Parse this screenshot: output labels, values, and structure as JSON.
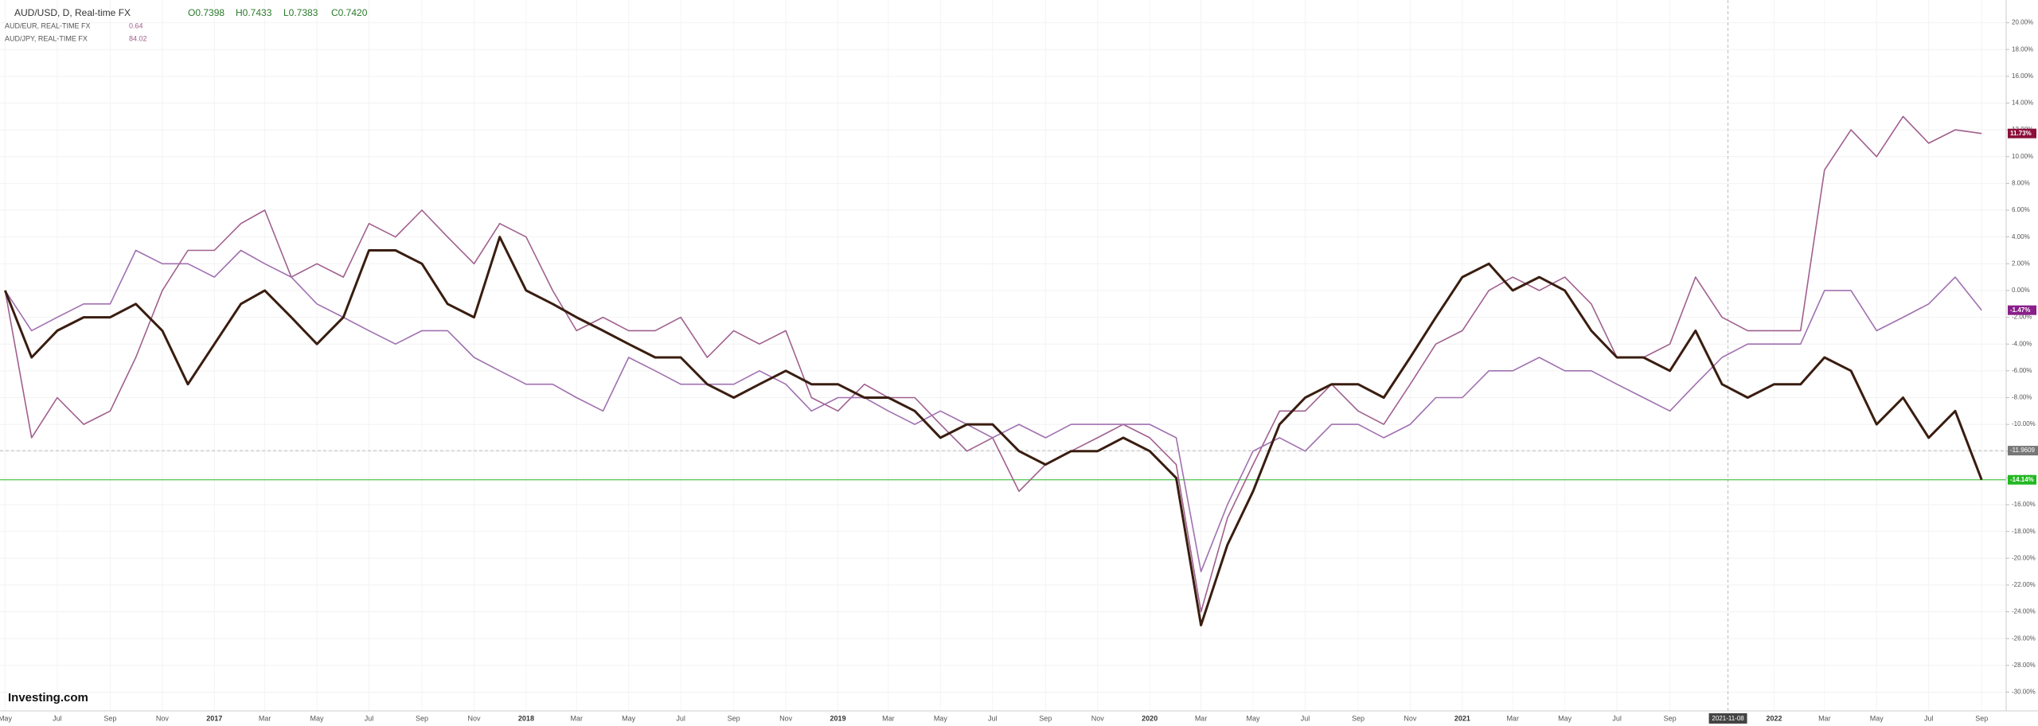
{
  "chart_data": {
    "type": "line",
    "header": {
      "symbol": "AUD/USD, D, Real-time FX",
      "ohlc": [
        "O0.7398",
        "H0.7433",
        "L0.7383",
        "C0.7420"
      ]
    },
    "brand": "Investing.com",
    "x": [
      "2016-05",
      "2016-06",
      "2016-07",
      "2016-08",
      "2016-09",
      "2016-10",
      "2016-11",
      "2016-12",
      "2017-01",
      "2017-02",
      "2017-03",
      "2017-04",
      "2017-05",
      "2017-06",
      "2017-07",
      "2017-08",
      "2017-09",
      "2017-10",
      "2017-11",
      "2017-12",
      "2018-01",
      "2018-02",
      "2018-03",
      "2018-04",
      "2018-05",
      "2018-06",
      "2018-07",
      "2018-08",
      "2018-09",
      "2018-10",
      "2018-11",
      "2018-12",
      "2019-01",
      "2019-02",
      "2019-03",
      "2019-04",
      "2019-05",
      "2019-06",
      "2019-07",
      "2019-08",
      "2019-09",
      "2019-10",
      "2019-11",
      "2019-12",
      "2020-01",
      "2020-02",
      "2020-03",
      "2020-04",
      "2020-05",
      "2020-06",
      "2020-07",
      "2020-08",
      "2020-09",
      "2020-10",
      "2020-11",
      "2020-12",
      "2021-01",
      "2021-02",
      "2021-03",
      "2021-04",
      "2021-05",
      "2021-06",
      "2021-07",
      "2021-08",
      "2021-09",
      "2021-10",
      "2021-11",
      "2021-12",
      "2022-01",
      "2022-02",
      "2022-03",
      "2022-04",
      "2022-05",
      "2022-06",
      "2022-07",
      "2022-08",
      "2022-09"
    ],
    "series": [
      {
        "name": "AUD/USD, D, Real-time FX",
        "color": "#3a1d10",
        "values": [
          0,
          -5,
          -3,
          -2,
          -2,
          -1,
          -3,
          -7,
          -4,
          -1,
          0,
          -2,
          -4,
          -2,
          3,
          3,
          2,
          -1,
          -2,
          4,
          0,
          -1,
          -2,
          -3,
          -4,
          -5,
          -5,
          -7,
          -8,
          -7,
          -6,
          -7,
          -7,
          -8,
          -8,
          -9,
          -11,
          -10,
          -10,
          -12,
          -13,
          -12,
          -12,
          -11,
          -12,
          -14,
          -25,
          -19,
          -15,
          -10,
          -8,
          -7,
          -7,
          -8,
          -5,
          -2,
          1,
          2,
          0,
          1,
          0,
          -3,
          -5,
          -5,
          -6,
          -3,
          -7,
          -8,
          -7,
          -7,
          -5,
          -6,
          -10,
          -8,
          -11,
          -9,
          -14.14
        ],
        "last_label": "-14.14%",
        "badge": "#22b822"
      },
      {
        "name": "AUD/EUR, REAL-TIME FX",
        "color": "#a070b0",
        "last_price": 0.64,
        "values": [
          0,
          -3,
          -2,
          -1,
          -1,
          3,
          2,
          2,
          1,
          3,
          2,
          1,
          -1,
          -2,
          -3,
          -4,
          -3,
          -3,
          -5,
          -6,
          -7,
          -7,
          -8,
          -9,
          -5,
          -6,
          -7,
          -7,
          -7,
          -6,
          -7,
          -9,
          -8,
          -8,
          -9,
          -10,
          -9,
          -10,
          -11,
          -10,
          -11,
          -10,
          -10,
          -10,
          -10,
          -11,
          -21,
          -16,
          -12,
          -11,
          -12,
          -10,
          -10,
          -11,
          -10,
          -8,
          -8,
          -6,
          -6,
          -5,
          -6,
          -6,
          -7,
          -8,
          -9,
          -7,
          -5,
          -4,
          -4,
          -4,
          0,
          0,
          -3,
          -2,
          -1,
          1,
          -1.47
        ],
        "last_label": "-1.47%",
        "badge": "#8a1f8a"
      },
      {
        "name": "AUD/JPY, REAL-TIME FX",
        "color": "#a0608e",
        "last_price": 84.02,
        "values": [
          0,
          -11,
          -8,
          -10,
          -9,
          -5,
          0,
          3,
          3,
          5,
          6,
          1,
          2,
          1,
          5,
          4,
          6,
          4,
          2,
          5,
          4,
          0,
          -3,
          -2,
          -3,
          -3,
          -2,
          -5,
          -3,
          -4,
          -3,
          -8,
          -9,
          -7,
          -8,
          -8,
          -10,
          -12,
          -11,
          -15,
          -13,
          -12,
          -11,
          -10,
          -11,
          -13,
          -24,
          -17,
          -13,
          -9,
          -9,
          -7,
          -9,
          -10,
          -7,
          -4,
          -3,
          0,
          1,
          0,
          1,
          -1,
          -5,
          -5,
          -4,
          1,
          -2,
          -3,
          -3,
          -3,
          9,
          12,
          10,
          13,
          11,
          12,
          11.73
        ],
        "last_label": "11.73%",
        "badge": "#8b0f3a"
      }
    ],
    "crosshair": {
      "x": "2021-11-08",
      "y": -11.9609
    },
    "xlim": [
      "2016-04-25",
      "2022-09-25"
    ],
    "ylim": [
      -31.4,
      21.7
    ],
    "xticks": [
      {
        "value": "2016-05",
        "label": "May"
      },
      {
        "value": "2016-07",
        "label": "Jul"
      },
      {
        "value": "2016-09",
        "label": "Sep"
      },
      {
        "value": "2016-11",
        "label": "Nov"
      },
      {
        "value": "2017-01",
        "label": "2017"
      },
      {
        "value": "2017-03",
        "label": "Mar"
      },
      {
        "value": "2017-05",
        "label": "May"
      },
      {
        "value": "2017-07",
        "label": "Jul"
      },
      {
        "value": "2017-09",
        "label": "Sep"
      },
      {
        "value": "2017-11",
        "label": "Nov"
      },
      {
        "value": "2018-01",
        "label": "2018"
      },
      {
        "value": "2018-03",
        "label": "Mar"
      },
      {
        "value": "2018-05",
        "label": "May"
      },
      {
        "value": "2018-07",
        "label": "Jul"
      },
      {
        "value": "2018-09",
        "label": "Sep"
      },
      {
        "value": "2018-11",
        "label": "Nov"
      },
      {
        "value": "2019-01",
        "label": "2019"
      },
      {
        "value": "2019-03",
        "label": "Mar"
      },
      {
        "value": "2019-05",
        "label": "May"
      },
      {
        "value": "2019-07",
        "label": "Jul"
      },
      {
        "value": "2019-09",
        "label": "Sep"
      },
      {
        "value": "2019-11",
        "label": "Nov"
      },
      {
        "value": "2020-01",
        "label": "2020"
      },
      {
        "value": "2020-03",
        "label": "Mar"
      },
      {
        "value": "2020-05",
        "label": "May"
      },
      {
        "value": "2020-07",
        "label": "Jul"
      },
      {
        "value": "2020-09",
        "label": "Sep"
      },
      {
        "value": "2020-11",
        "label": "Nov"
      },
      {
        "value": "2021-01",
        "label": "2021"
      },
      {
        "value": "2021-03",
        "label": "Mar"
      },
      {
        "value": "2021-05",
        "label": "May"
      },
      {
        "value": "2021-07",
        "label": "Jul"
      },
      {
        "value": "2021-09",
        "label": "Sep"
      },
      {
        "value": "2022-01",
        "label": "2022"
      },
      {
        "value": "2022-03",
        "label": "Mar"
      },
      {
        "value": "2022-05",
        "label": "May"
      },
      {
        "value": "2022-07",
        "label": "Jul"
      },
      {
        "value": "2022-09",
        "label": "Sep"
      }
    ],
    "yticks": [
      {
        "value": 20,
        "label": "20.00%"
      },
      {
        "value": 18,
        "label": "18.00%"
      },
      {
        "value": 16,
        "label": "16.00%"
      },
      {
        "value": 14,
        "label": "14.00%"
      },
      {
        "value": 12,
        "label": "12.00%"
      },
      {
        "value": 10,
        "label": "10.00%"
      },
      {
        "value": 8,
        "label": "8.00%"
      },
      {
        "value": 6,
        "label": "6.00%"
      },
      {
        "value": 4,
        "label": "4.00%"
      },
      {
        "value": 2,
        "label": "2.00%"
      },
      {
        "value": 0,
        "label": "0.00%"
      },
      {
        "value": -2,
        "label": "-2.00%"
      },
      {
        "value": -4,
        "label": "-4.00%"
      },
      {
        "value": -6,
        "label": "-6.00%"
      },
      {
        "value": -8,
        "label": "-8.00%"
      },
      {
        "value": -10,
        "label": "-10.00%"
      },
      {
        "value": -12,
        "label": "-12.00%"
      },
      {
        "value": -14,
        "label": "-14.00%"
      },
      {
        "value": -16,
        "label": "-16.00%"
      },
      {
        "value": -18,
        "label": "-18.00%"
      },
      {
        "value": -20,
        "label": "-20.00%"
      },
      {
        "value": -22,
        "label": "-22.00%"
      },
      {
        "value": -24,
        "label": "-24.00%"
      },
      {
        "value": -26,
        "label": "-26.00%"
      },
      {
        "value": -28,
        "label": "-28.00%"
      },
      {
        "value": -30,
        "label": "-30.00%"
      }
    ],
    "grid": true
  }
}
